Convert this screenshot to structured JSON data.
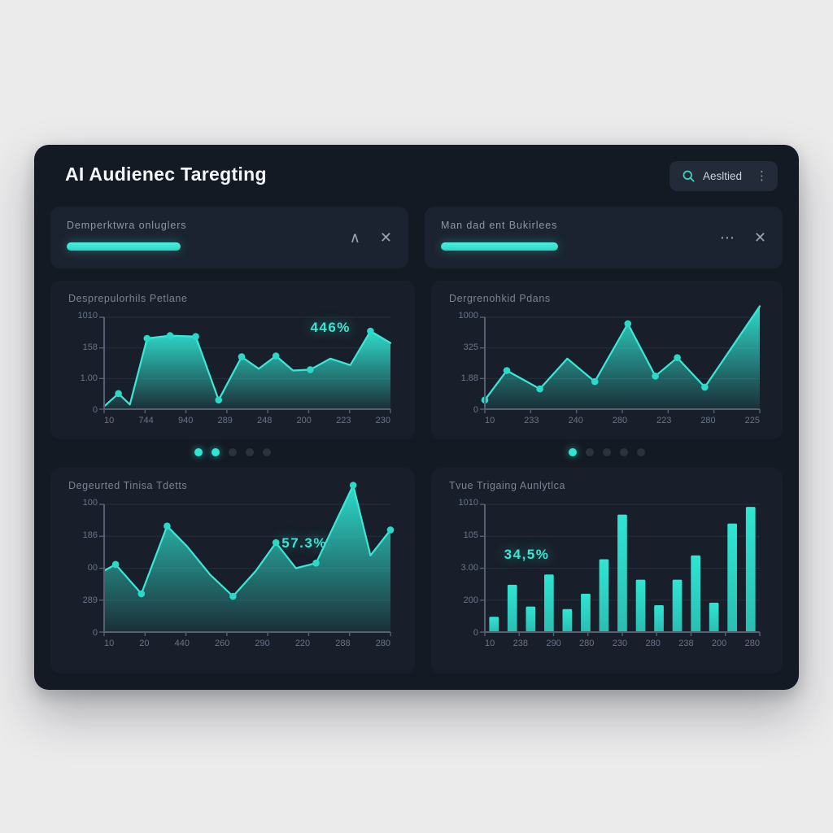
{
  "header": {
    "title": "AI Audienec Taregting",
    "search": {
      "label": "Aesltied"
    }
  },
  "icons": {
    "caret_up": "∧",
    "close": "✕",
    "ellipsis": "⋯",
    "kebab": "⋮"
  },
  "filters": [
    {
      "label": "Demperktwra onluglers",
      "progress_pct": 35
    },
    {
      "label": "Man dad ent Bukirlees",
      "progress_pct": 36
    }
  ],
  "pagination": [
    {
      "dots": [
        true,
        true,
        false,
        false,
        false
      ]
    },
    {
      "dots": [
        true,
        false,
        false,
        false,
        false
      ]
    }
  ],
  "colors": {
    "page_bg": "#ebebec",
    "card_bg": "#141a23",
    "panel_bg": "#191f2a",
    "accent": "#2fe5d3",
    "grid": "#262e3b",
    "axis": "#566073",
    "tick_text": "#69748a"
  },
  "chart_data": [
    {
      "type": "area",
      "title": "Desprepulorhils Petlane",
      "badge": {
        "text": "446%"
      },
      "y_ticks": [
        "1010",
        "158",
        "1.00",
        "0"
      ],
      "x_ticks": [
        "10",
        "744",
        "940",
        "289",
        "248",
        "200",
        "223",
        "230"
      ],
      "points": [
        [
          0,
          0.03
        ],
        [
          0.05,
          0.17
        ],
        [
          0.09,
          0.05
        ],
        [
          0.15,
          0.77
        ],
        [
          0.23,
          0.8
        ],
        [
          0.32,
          0.79
        ],
        [
          0.4,
          0.1
        ],
        [
          0.48,
          0.57
        ],
        [
          0.54,
          0.44
        ],
        [
          0.6,
          0.58
        ],
        [
          0.66,
          0.42
        ],
        [
          0.72,
          0.43
        ],
        [
          0.79,
          0.55
        ],
        [
          0.86,
          0.48
        ],
        [
          0.93,
          0.85
        ],
        [
          1,
          0.72
        ]
      ],
      "dot_indices": [
        1,
        3,
        4,
        5,
        6,
        7,
        9,
        11,
        14
      ]
    },
    {
      "type": "area",
      "title": "Dergrenohkid Pdans",
      "badge": null,
      "y_ticks": [
        "1000",
        "325",
        "1.88",
        "0"
      ],
      "x_ticks": [
        "10",
        "233",
        "240",
        "280",
        "223",
        "280",
        "225"
      ],
      "points": [
        [
          0,
          0.1
        ],
        [
          0.08,
          0.42
        ],
        [
          0.2,
          0.22
        ],
        [
          0.3,
          0.55
        ],
        [
          0.4,
          0.3
        ],
        [
          0.52,
          0.93
        ],
        [
          0.62,
          0.36
        ],
        [
          0.7,
          0.56
        ],
        [
          0.8,
          0.24
        ],
        [
          1,
          1.12
        ]
      ],
      "dot_indices": [
        0,
        1,
        2,
        4,
        5,
        6,
        7,
        8
      ]
    },
    {
      "type": "area",
      "title": "Degeurted Tinisa Tdetts",
      "badge": {
        "text": "57.3%"
      },
      "y_ticks": [
        "100",
        "186",
        "00",
        "289",
        "0"
      ],
      "x_ticks": [
        "10",
        "20",
        "440",
        "260",
        "290",
        "220",
        "288",
        "280"
      ],
      "points": [
        [
          0,
          0.48
        ],
        [
          0.04,
          0.53
        ],
        [
          0.13,
          0.3
        ],
        [
          0.22,
          0.83
        ],
        [
          0.29,
          0.67
        ],
        [
          0.37,
          0.45
        ],
        [
          0.45,
          0.28
        ],
        [
          0.53,
          0.48
        ],
        [
          0.6,
          0.7
        ],
        [
          0.67,
          0.5
        ],
        [
          0.74,
          0.54
        ],
        [
          0.87,
          1.15
        ],
        [
          0.93,
          0.6
        ],
        [
          1,
          0.8
        ]
      ],
      "dot_indices": [
        1,
        2,
        3,
        6,
        8,
        10,
        11,
        13
      ]
    },
    {
      "type": "bar",
      "title": "Tvue Trigaing Aunlytlca",
      "badge": {
        "text": "34,5%"
      },
      "y_ticks": [
        "1010",
        "105",
        "3.00",
        "200",
        "0"
      ],
      "x_ticks": [
        "10",
        "238",
        "290",
        "280",
        "230",
        "280",
        "238",
        "200",
        "280"
      ],
      "values": [
        0.12,
        0.37,
        0.2,
        0.45,
        0.18,
        0.3,
        0.57,
        0.92,
        0.41,
        0.21,
        0.41,
        0.6,
        0.23,
        0.85,
        0.98
      ]
    }
  ]
}
